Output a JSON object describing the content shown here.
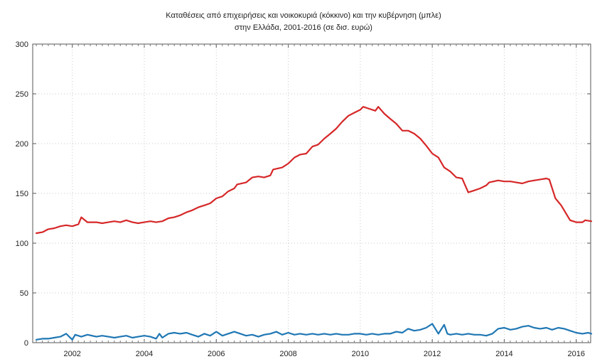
{
  "chart_data": {
    "type": "line",
    "title": "Καταθέσεις από επιχειρήσεις και νοικοκυριά (κόκκινο) και την κυβέρνηση (μπλε)",
    "subtitle": "στην Ελλάδα, 2001-2016 (σε δισ. ευρώ)",
    "xlabel": "",
    "ylabel": "",
    "xlim": [
      2000.9,
      2016.4
    ],
    "ylim": [
      0,
      300
    ],
    "grid": true,
    "x_ticks": [
      "2002",
      "2004",
      "2006",
      "2008",
      "2010",
      "2012",
      "2014",
      "2016"
    ],
    "y_ticks": [
      "0",
      "50",
      "100",
      "150",
      "200",
      "250",
      "300"
    ],
    "series": [
      {
        "name": "Επιχειρήσεις και νοικοκυριά",
        "color": "#d62728",
        "points": [
          [
            2001.0,
            110
          ],
          [
            2001.17,
            111
          ],
          [
            2001.33,
            114
          ],
          [
            2001.5,
            115
          ],
          [
            2001.67,
            117
          ],
          [
            2001.83,
            118
          ],
          [
            2002.0,
            117
          ],
          [
            2002.17,
            119
          ],
          [
            2002.25,
            126
          ],
          [
            2002.42,
            121
          ],
          [
            2002.67,
            121
          ],
          [
            2002.83,
            120
          ],
          [
            2003.0,
            121
          ],
          [
            2003.17,
            122
          ],
          [
            2003.33,
            121
          ],
          [
            2003.5,
            123
          ],
          [
            2003.67,
            121
          ],
          [
            2003.83,
            120
          ],
          [
            2004.0,
            121
          ],
          [
            2004.17,
            122
          ],
          [
            2004.33,
            121
          ],
          [
            2004.5,
            122
          ],
          [
            2004.67,
            125
          ],
          [
            2004.83,
            126
          ],
          [
            2005.0,
            128
          ],
          [
            2005.17,
            131
          ],
          [
            2005.33,
            133
          ],
          [
            2005.5,
            136
          ],
          [
            2005.67,
            138
          ],
          [
            2005.83,
            140
          ],
          [
            2006.0,
            145
          ],
          [
            2006.17,
            147
          ],
          [
            2006.33,
            152
          ],
          [
            2006.5,
            155
          ],
          [
            2006.58,
            159
          ],
          [
            2006.83,
            161
          ],
          [
            2007.0,
            166
          ],
          [
            2007.17,
            167
          ],
          [
            2007.33,
            166
          ],
          [
            2007.5,
            168
          ],
          [
            2007.58,
            174
          ],
          [
            2007.83,
            176
          ],
          [
            2008.0,
            180
          ],
          [
            2008.17,
            186
          ],
          [
            2008.33,
            189
          ],
          [
            2008.5,
            190
          ],
          [
            2008.67,
            197
          ],
          [
            2008.83,
            199
          ],
          [
            2009.0,
            205
          ],
          [
            2009.17,
            210
          ],
          [
            2009.33,
            215
          ],
          [
            2009.5,
            222
          ],
          [
            2009.67,
            228
          ],
          [
            2009.83,
            231
          ],
          [
            2010.0,
            234
          ],
          [
            2010.08,
            237
          ],
          [
            2010.25,
            235
          ],
          [
            2010.42,
            233
          ],
          [
            2010.5,
            237
          ],
          [
            2010.67,
            230
          ],
          [
            2010.83,
            225
          ],
          [
            2011.0,
            220
          ],
          [
            2011.17,
            213
          ],
          [
            2011.33,
            213
          ],
          [
            2011.5,
            210
          ],
          [
            2011.67,
            205
          ],
          [
            2011.83,
            198
          ],
          [
            2012.0,
            190
          ],
          [
            2012.17,
            186
          ],
          [
            2012.33,
            176
          ],
          [
            2012.5,
            172
          ],
          [
            2012.67,
            166
          ],
          [
            2012.83,
            165
          ],
          [
            2013.0,
            151
          ],
          [
            2013.17,
            153
          ],
          [
            2013.33,
            155
          ],
          [
            2013.5,
            158
          ],
          [
            2013.58,
            161
          ],
          [
            2013.83,
            163
          ],
          [
            2014.0,
            162
          ],
          [
            2014.17,
            162
          ],
          [
            2014.33,
            161
          ],
          [
            2014.5,
            160
          ],
          [
            2014.67,
            162
          ],
          [
            2014.83,
            163
          ],
          [
            2015.0,
            164
          ],
          [
            2015.17,
            165
          ],
          [
            2015.25,
            164
          ],
          [
            2015.42,
            145
          ],
          [
            2015.58,
            138
          ],
          [
            2015.83,
            123
          ],
          [
            2016.0,
            121
          ],
          [
            2016.17,
            121
          ],
          [
            2016.25,
            123
          ],
          [
            2016.42,
            122
          ]
        ]
      },
      {
        "name": "Κυβέρνηση",
        "color": "#1f77b4",
        "points": [
          [
            2001.0,
            3
          ],
          [
            2001.17,
            4
          ],
          [
            2001.33,
            4
          ],
          [
            2001.5,
            5
          ],
          [
            2001.67,
            6
          ],
          [
            2001.83,
            9
          ],
          [
            2002.0,
            3
          ],
          [
            2002.08,
            8
          ],
          [
            2002.25,
            6
          ],
          [
            2002.42,
            8
          ],
          [
            2002.67,
            6
          ],
          [
            2002.83,
            7
          ],
          [
            2003.0,
            6
          ],
          [
            2003.17,
            5
          ],
          [
            2003.33,
            6
          ],
          [
            2003.5,
            7
          ],
          [
            2003.67,
            5
          ],
          [
            2003.83,
            6
          ],
          [
            2004.0,
            7
          ],
          [
            2004.17,
            6
          ],
          [
            2004.33,
            4
          ],
          [
            2004.42,
            9
          ],
          [
            2004.5,
            5
          ],
          [
            2004.67,
            9
          ],
          [
            2004.83,
            10
          ],
          [
            2005.0,
            9
          ],
          [
            2005.17,
            10
          ],
          [
            2005.33,
            8
          ],
          [
            2005.5,
            6
          ],
          [
            2005.67,
            9
          ],
          [
            2005.83,
            7
          ],
          [
            2006.0,
            11
          ],
          [
            2006.17,
            7
          ],
          [
            2006.33,
            9
          ],
          [
            2006.5,
            11
          ],
          [
            2006.67,
            9
          ],
          [
            2006.83,
            7
          ],
          [
            2007.0,
            8
          ],
          [
            2007.17,
            6
          ],
          [
            2007.33,
            8
          ],
          [
            2007.5,
            9
          ],
          [
            2007.67,
            11
          ],
          [
            2007.83,
            8
          ],
          [
            2008.0,
            10
          ],
          [
            2008.17,
            8
          ],
          [
            2008.33,
            9
          ],
          [
            2008.5,
            8
          ],
          [
            2008.67,
            9
          ],
          [
            2008.83,
            8
          ],
          [
            2009.0,
            9
          ],
          [
            2009.17,
            8
          ],
          [
            2009.33,
            9
          ],
          [
            2009.5,
            8
          ],
          [
            2009.67,
            8
          ],
          [
            2009.83,
            9
          ],
          [
            2010.0,
            9
          ],
          [
            2010.17,
            8
          ],
          [
            2010.33,
            9
          ],
          [
            2010.5,
            8
          ],
          [
            2010.67,
            9
          ],
          [
            2010.83,
            9
          ],
          [
            2011.0,
            11
          ],
          [
            2011.17,
            10
          ],
          [
            2011.33,
            14
          ],
          [
            2011.5,
            12
          ],
          [
            2011.67,
            13
          ],
          [
            2011.83,
            15
          ],
          [
            2012.0,
            19
          ],
          [
            2012.17,
            9
          ],
          [
            2012.33,
            18
          ],
          [
            2012.42,
            9
          ],
          [
            2012.5,
            8
          ],
          [
            2012.67,
            9
          ],
          [
            2012.83,
            8
          ],
          [
            2013.0,
            9
          ],
          [
            2013.17,
            8
          ],
          [
            2013.33,
            8
          ],
          [
            2013.5,
            7
          ],
          [
            2013.67,
            9
          ],
          [
            2013.83,
            14
          ],
          [
            2014.0,
            15
          ],
          [
            2014.17,
            13
          ],
          [
            2014.33,
            14
          ],
          [
            2014.5,
            16
          ],
          [
            2014.67,
            17
          ],
          [
            2014.83,
            15
          ],
          [
            2015.0,
            14
          ],
          [
            2015.17,
            15
          ],
          [
            2015.33,
            13
          ],
          [
            2015.5,
            15
          ],
          [
            2015.67,
            14
          ],
          [
            2015.83,
            12
          ],
          [
            2016.0,
            10
          ],
          [
            2016.17,
            9
          ],
          [
            2016.33,
            10
          ],
          [
            2016.42,
            9
          ]
        ]
      }
    ]
  }
}
